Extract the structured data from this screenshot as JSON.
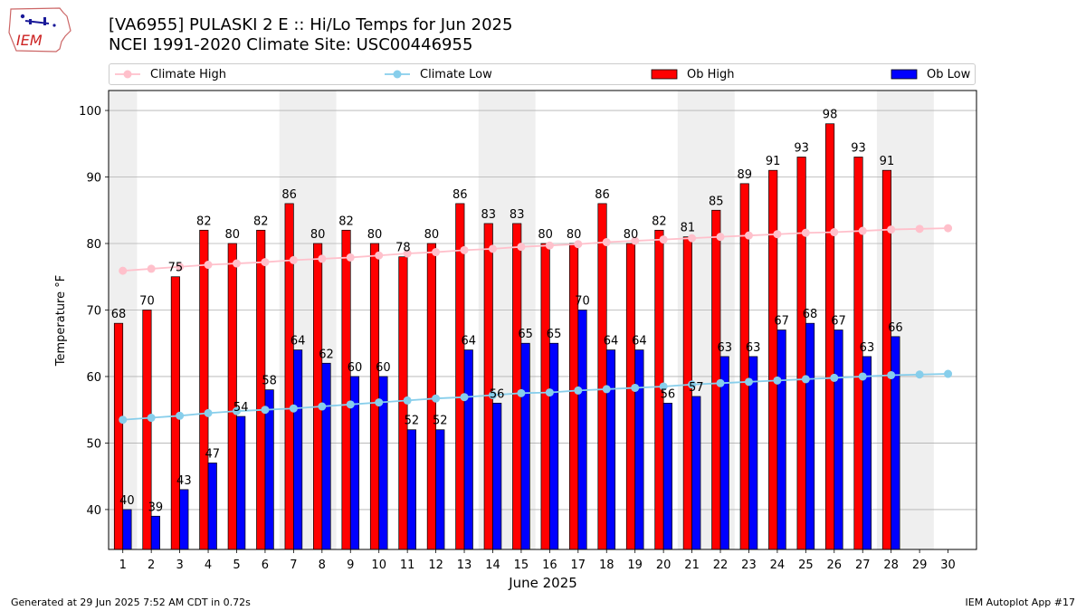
{
  "header": {
    "title_line1": "[VA6955] PULASKI 2 E :: Hi/Lo Temps for Jun 2025",
    "title_line2": "NCEI 1991-2020 Climate Site: USC00446955",
    "logo_text": "IEM"
  },
  "legend": {
    "climate_high": "Climate High",
    "climate_low": "Climate Low",
    "ob_high": "Ob High",
    "ob_low": "Ob Low"
  },
  "colors": {
    "climate_high": "#ffc0cb",
    "climate_low": "#87ceeb",
    "ob_high": "#ff0000",
    "ob_low": "#0000ff",
    "weekend_band": "#efefef"
  },
  "footer": {
    "left": "Generated at 29 Jun 2025 7:52 AM CDT in 0.72s",
    "right": "IEM Autoplot App #17"
  },
  "chart_data": {
    "type": "bar",
    "xlabel": "June 2025",
    "ylabel": "Temperature °F",
    "ylim": [
      34,
      103
    ],
    "yticks": [
      40,
      50,
      60,
      70,
      80,
      90,
      100
    ],
    "grid": true,
    "legend_position": "top",
    "days": [
      1,
      2,
      3,
      4,
      5,
      6,
      7,
      8,
      9,
      10,
      11,
      12,
      13,
      14,
      15,
      16,
      17,
      18,
      19,
      20,
      21,
      22,
      23,
      24,
      25,
      26,
      27,
      28,
      29,
      30
    ],
    "weekend_bands": [
      [
        1,
        1
      ],
      [
        7,
        8
      ],
      [
        14,
        15
      ],
      [
        21,
        22
      ],
      [
        28,
        29
      ]
    ],
    "series": [
      {
        "name": "Ob High",
        "kind": "bar",
        "values": [
          68,
          70,
          75,
          82,
          80,
          82,
          86,
          80,
          82,
          80,
          78,
          80,
          86,
          83,
          83,
          80,
          80,
          86,
          80,
          82,
          81,
          85,
          89,
          91,
          93,
          98,
          93,
          91,
          null,
          null
        ]
      },
      {
        "name": "Ob Low",
        "kind": "bar",
        "values": [
          40,
          39,
          43,
          47,
          54,
          58,
          64,
          62,
          60,
          60,
          52,
          52,
          64,
          56,
          65,
          65,
          70,
          64,
          64,
          56,
          57,
          63,
          63,
          67,
          68,
          67,
          63,
          66,
          null,
          null
        ]
      },
      {
        "name": "Climate High",
        "kind": "line",
        "values": [
          75.9,
          76.2,
          76.5,
          76.8,
          77.0,
          77.2,
          77.5,
          77.7,
          77.9,
          78.2,
          78.5,
          78.7,
          79.0,
          79.2,
          79.5,
          79.7,
          79.9,
          80.2,
          80.4,
          80.6,
          80.8,
          81.0,
          81.2,
          81.4,
          81.6,
          81.7,
          81.9,
          82.1,
          82.2,
          82.3
        ]
      },
      {
        "name": "Climate Low",
        "kind": "line",
        "values": [
          53.5,
          53.8,
          54.1,
          54.5,
          54.8,
          55.0,
          55.2,
          55.5,
          55.8,
          56.1,
          56.4,
          56.7,
          56.9,
          57.2,
          57.5,
          57.6,
          57.9,
          58.1,
          58.3,
          58.5,
          58.8,
          59.0,
          59.2,
          59.4,
          59.6,
          59.8,
          60.0,
          60.2,
          60.3,
          60.4
        ]
      }
    ]
  }
}
